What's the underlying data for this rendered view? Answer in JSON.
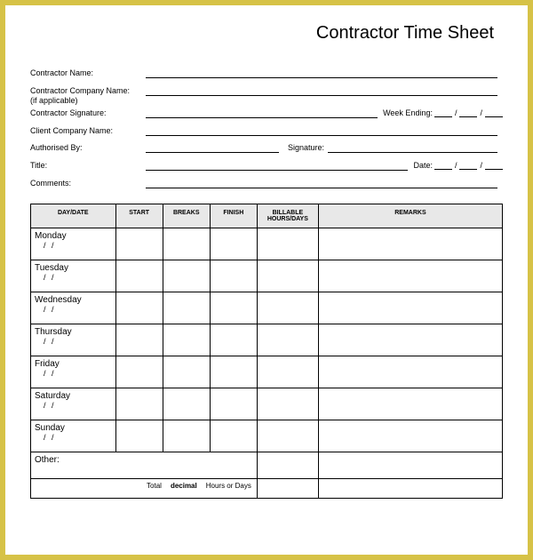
{
  "title": "Contractor Time Sheet",
  "colors": {
    "page_bg": "#ffffff",
    "frame_bg": "#d6c247",
    "header_bg": "#e8e8e8",
    "border": "#000000",
    "text": "#000000"
  },
  "typography": {
    "family": "Arial, sans-serif",
    "title_fontsize": 20,
    "label_fontsize": 9,
    "table_header_fontsize": 7,
    "day_fontsize": 10
  },
  "fields": {
    "contractor_name": "Contractor Name:",
    "contractor_company": "Contractor Company Name:",
    "if_applicable": "(if applicable)",
    "contractor_signature": "Contractor Signature:",
    "week_ending": "Week Ending:",
    "client_company": "Client Company Name:",
    "authorised_by": "Authorised By:",
    "signature": "Signature:",
    "title_lbl": "Title:",
    "date_lbl": "Date:",
    "comments": "Comments:"
  },
  "table": {
    "type": "table",
    "columns": [
      "DAY/DATE",
      "START",
      "BREAKS",
      "FINISH",
      "BILLABLE HOURS/DAYS",
      "REMARKS"
    ],
    "column_widths_pct": [
      18,
      10,
      10,
      10,
      13,
      39
    ],
    "days": [
      "Monday",
      "Tuesday",
      "Wednesday",
      "Thursday",
      "Friday",
      "Saturday",
      "Sunday"
    ],
    "date_placeholder": "/   /",
    "other_label": "Other:",
    "total_label": "Total",
    "total_mid": "decimal",
    "total_suffix": "Hours or Days"
  }
}
